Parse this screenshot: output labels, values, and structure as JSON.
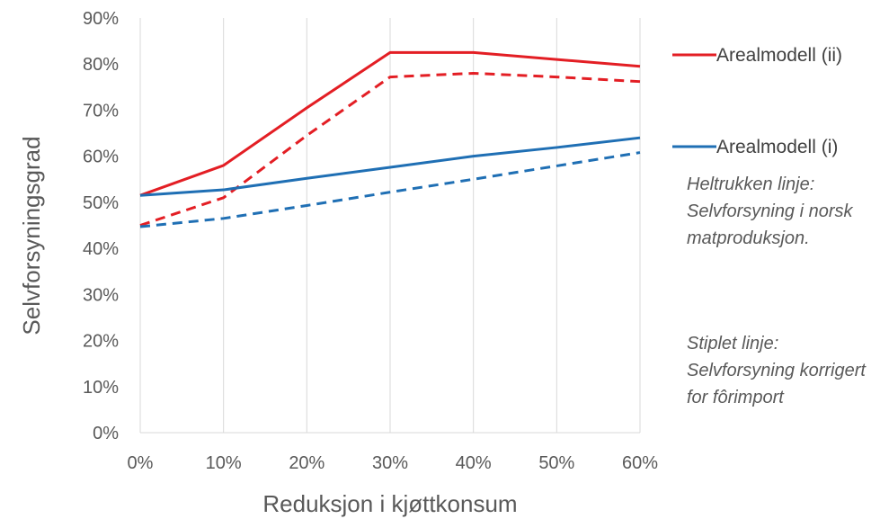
{
  "chart_data": {
    "type": "line",
    "title": "",
    "xlabel": "Reduksjon i kjøttkonsum",
    "ylabel": "Selvforsyningsgrad",
    "x": [
      0,
      10,
      20,
      30,
      40,
      50,
      60
    ],
    "x_tick_labels": [
      "0%",
      "10%",
      "20%",
      "30%",
      "40%",
      "50%",
      "60%"
    ],
    "y_tick_labels": [
      "0%",
      "10%",
      "20%",
      "30%",
      "40%",
      "50%",
      "60%",
      "70%",
      "80%",
      "90%"
    ],
    "xlim": [
      0,
      60
    ],
    "ylim": [
      0,
      90
    ],
    "grid": "vertical",
    "legend_position": "right",
    "series": [
      {
        "name": "Arealmodell (ii)",
        "line_style": "solid",
        "color": "#e31e24",
        "values": [
          51.5,
          58,
          70.5,
          82.5,
          82.5,
          81,
          79.5
        ]
      },
      {
        "name": "",
        "line_style": "dashed",
        "color": "#e31e24",
        "values": [
          45,
          51,
          64.5,
          77.2,
          78,
          77.2,
          76.2
        ]
      },
      {
        "name": "Arealmodell (i)",
        "line_style": "solid",
        "color": "#1f6fb4",
        "values": [
          51.5,
          52.7,
          55.2,
          57.6,
          60,
          61.9,
          64
        ]
      },
      {
        "name": "",
        "line_style": "dashed",
        "color": "#1f6fb4",
        "values": [
          44.7,
          46.5,
          49.3,
          52.2,
          55,
          57.9,
          60.8
        ]
      }
    ],
    "annotations": [
      "Heltrukken linje: Selvforsyning i norsk matproduksjon.",
      "Stiplet linje: Selvforsyning korrigert for fôrimport"
    ]
  }
}
